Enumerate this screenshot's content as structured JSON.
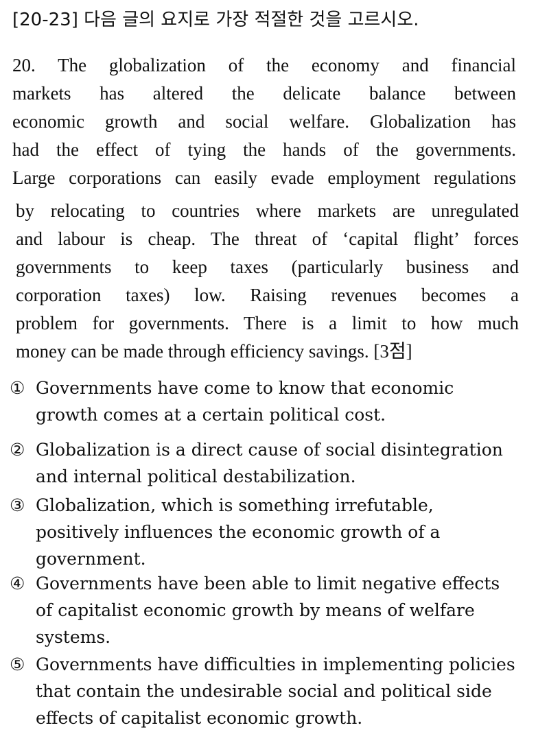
{
  "instruction": "[20-23] 다음 글의 요지로 가장 적절한 것을 고르시오.",
  "question": {
    "block1_lines": [
      "20. The globalization of the economy and financial",
      "markets has altered the delicate balance between",
      "economic growth and social welfare. Globalization has",
      "had the effect of tying the hands of the governments.",
      "Large corporations can easily evade employment regulations"
    ],
    "block2_lines": [
      "by relocating to countries where markets are unregulated",
      "and labour is cheap. The threat of ‘capital flight’ forces",
      "governments to keep taxes (particularly business and",
      "corporation taxes) low. Raising revenues becomes a",
      "problem for governments. There is a limit to how much",
      "money can be made through efficiency savings. [3점]"
    ]
  },
  "choices": [
    {
      "marker": "①",
      "lines": [
        "Governments have come to know that economic",
        "growth comes at a certain political cost."
      ]
    },
    {
      "marker": "②",
      "lines": [
        "Globalization is a direct cause of social disintegration",
        "and internal political destabilization."
      ]
    },
    {
      "marker": "③",
      "lines": [
        "Globalization, which is something irrefutable,",
        "positively influences the economic growth of a",
        "government."
      ]
    },
    {
      "marker": "④",
      "lines": [
        "Governments have been able to limit negative effects",
        "of capitalist economic growth by means of welfare",
        "systems."
      ]
    },
    {
      "marker": "⑤",
      "lines": [
        "Governments have difficulties in implementing policies",
        "that contain the undesirable social and political side",
        "effects of capitalist economic growth."
      ]
    }
  ]
}
